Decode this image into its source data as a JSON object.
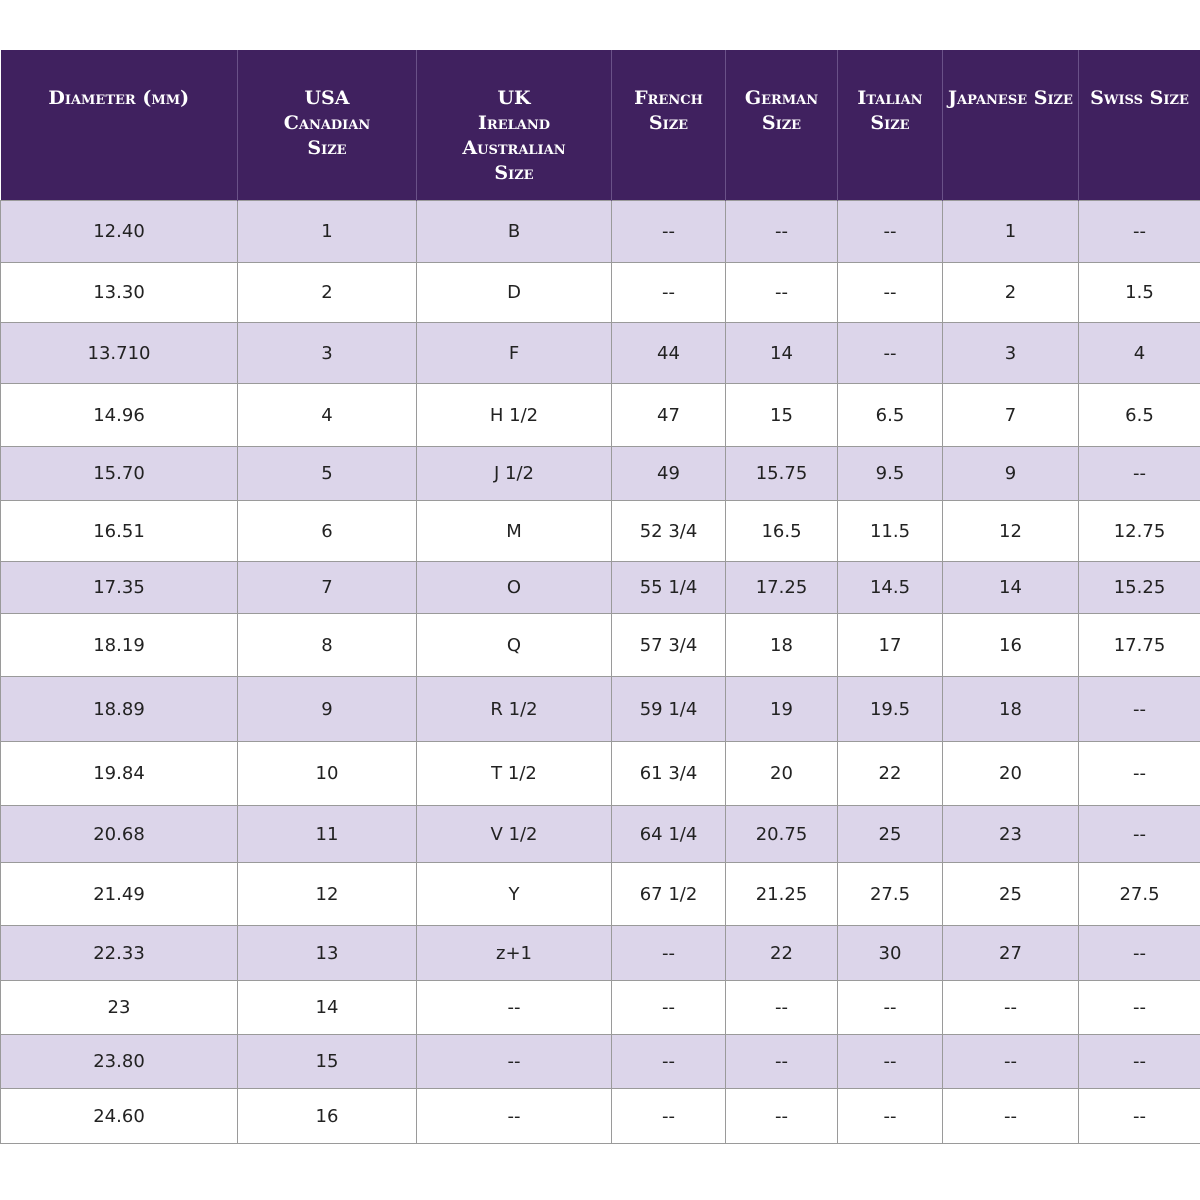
{
  "table": {
    "header": [
      [
        "Diameter (mm)"
      ],
      [
        "USA",
        "Canadian",
        "Size"
      ],
      [
        "UK",
        "Ireland",
        "Australian",
        "Size"
      ],
      [
        "French",
        "Size"
      ],
      [
        "German",
        "Size"
      ],
      [
        "Italian",
        "Size"
      ],
      [
        "Japanese Size"
      ],
      [
        "Swiss Size"
      ]
    ],
    "rows": [
      [
        "12.40",
        "1",
        "B",
        "--",
        "--",
        "--",
        "1",
        "--"
      ],
      [
        "13.30",
        "2",
        "D",
        "--",
        "--",
        "--",
        "2",
        "1.5"
      ],
      [
        "13.710",
        "3",
        "F",
        "44",
        "14",
        "--",
        "3",
        "4"
      ],
      [
        "14.96",
        "4",
        "H 1/2",
        "47",
        "15",
        "6.5",
        "7",
        "6.5"
      ],
      [
        "15.70",
        "5",
        "J 1/2",
        "49",
        "15.75",
        "9.5",
        "9",
        "--"
      ],
      [
        "16.51",
        "6",
        "M",
        "52 3/4",
        "16.5",
        "11.5",
        "12",
        "12.75"
      ],
      [
        "17.35",
        "7",
        "O",
        "55 1/4",
        "17.25",
        "14.5",
        "14",
        "15.25"
      ],
      [
        "18.19",
        "8",
        "Q",
        "57 3/4",
        "18",
        "17",
        "16",
        "17.75"
      ],
      [
        "18.89",
        "9",
        "R 1/2",
        "59 1/4",
        "19",
        "19.5",
        "18",
        "--"
      ],
      [
        "19.84",
        "10",
        "T 1/2",
        "61 3/4",
        "20",
        "22",
        "20",
        "--"
      ],
      [
        "20.68",
        "11",
        "V 1/2",
        "64 1/4",
        "20.75",
        "25",
        "23",
        "--"
      ],
      [
        "21.49",
        "12",
        "Y",
        "67 1/2",
        "21.25",
        "27.5",
        "25",
        "27.5"
      ],
      [
        "22.33",
        "13",
        "z+1",
        "--",
        "22",
        "30",
        "27",
        "--"
      ],
      [
        "23",
        "14",
        "--",
        "--",
        "--",
        "--",
        "--",
        "--"
      ],
      [
        "23.80",
        "15",
        "--",
        "--",
        "--",
        "--",
        "--",
        "--"
      ],
      [
        "24.60",
        "16",
        "--",
        "--",
        "--",
        "--",
        "--",
        "--"
      ]
    ]
  }
}
